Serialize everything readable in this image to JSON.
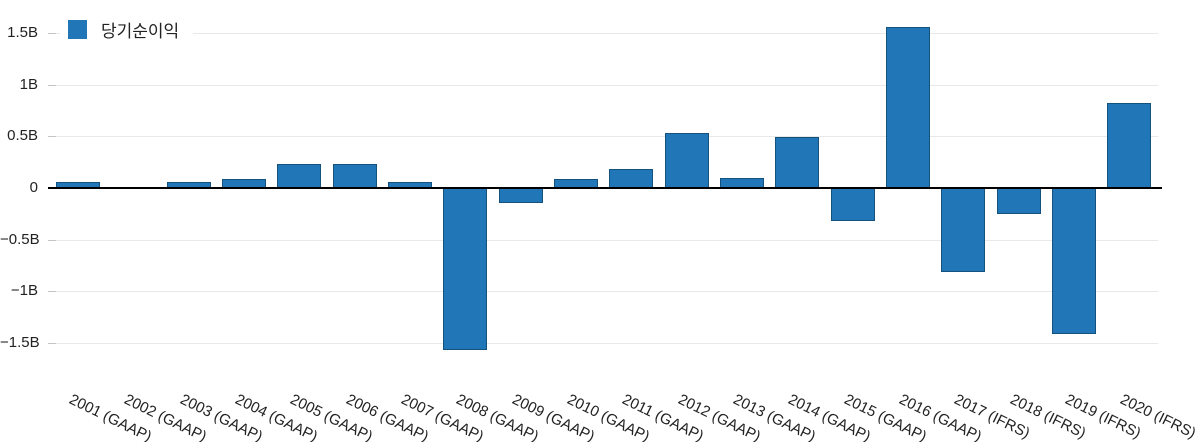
{
  "legend": {
    "label": "당기순이익"
  },
  "chart_data": {
    "type": "bar",
    "title": "",
    "legend_position": "top-left",
    "series_name": "당기순이익",
    "unit": "B",
    "grid": true,
    "categories": [
      "2001 (GAAP)",
      "2002 (GAAP)",
      "2003 (GAAP)",
      "2004 (GAAP)",
      "2005 (GAAP)",
      "2006 (GAAP)",
      "2007 (GAAP)",
      "2008 (GAAP)",
      "2009 (GAAP)",
      "2010 (GAAP)",
      "2011 (GAAP)",
      "2012 (GAAP)",
      "2013 (GAAP)",
      "2014 (GAAP)",
      "2015 (GAAP)",
      "2016 (GAAP)",
      "2017 (IFRS)",
      "2018 (IFRS)",
      "2019 (IFRS)",
      "2020 (IFRS)"
    ],
    "values": [
      0.06,
      0.01,
      0.06,
      0.09,
      0.23,
      0.23,
      0.06,
      -1.57,
      -0.15,
      0.09,
      0.18,
      0.53,
      0.1,
      0.49,
      -0.32,
      1.56,
      -0.81,
      -0.25,
      -1.41,
      0.82
    ],
    "xlabel": "",
    "ylabel": "",
    "ylim": [
      -1.75,
      1.72
    ],
    "y_ticks": [
      {
        "label": "1.5B",
        "value": 1.5
      },
      {
        "label": "1B",
        "value": 1.0
      },
      {
        "label": "0.5B",
        "value": 0.5
      },
      {
        "label": "0",
        "value": 0.0
      },
      {
        "label": "−0.5B",
        "value": -0.5
      },
      {
        "label": "−1B",
        "value": -1.0
      },
      {
        "label": "−1.5B",
        "value": -1.5
      }
    ],
    "colors": {
      "bar_fill": "#2176B7",
      "bar_border": "#14527D",
      "gridline": "#E8E8E8",
      "axis_tick": "#C4C4C4",
      "zero_line": "#000000",
      "text": "#222222",
      "background": "#FFFFFF"
    }
  }
}
